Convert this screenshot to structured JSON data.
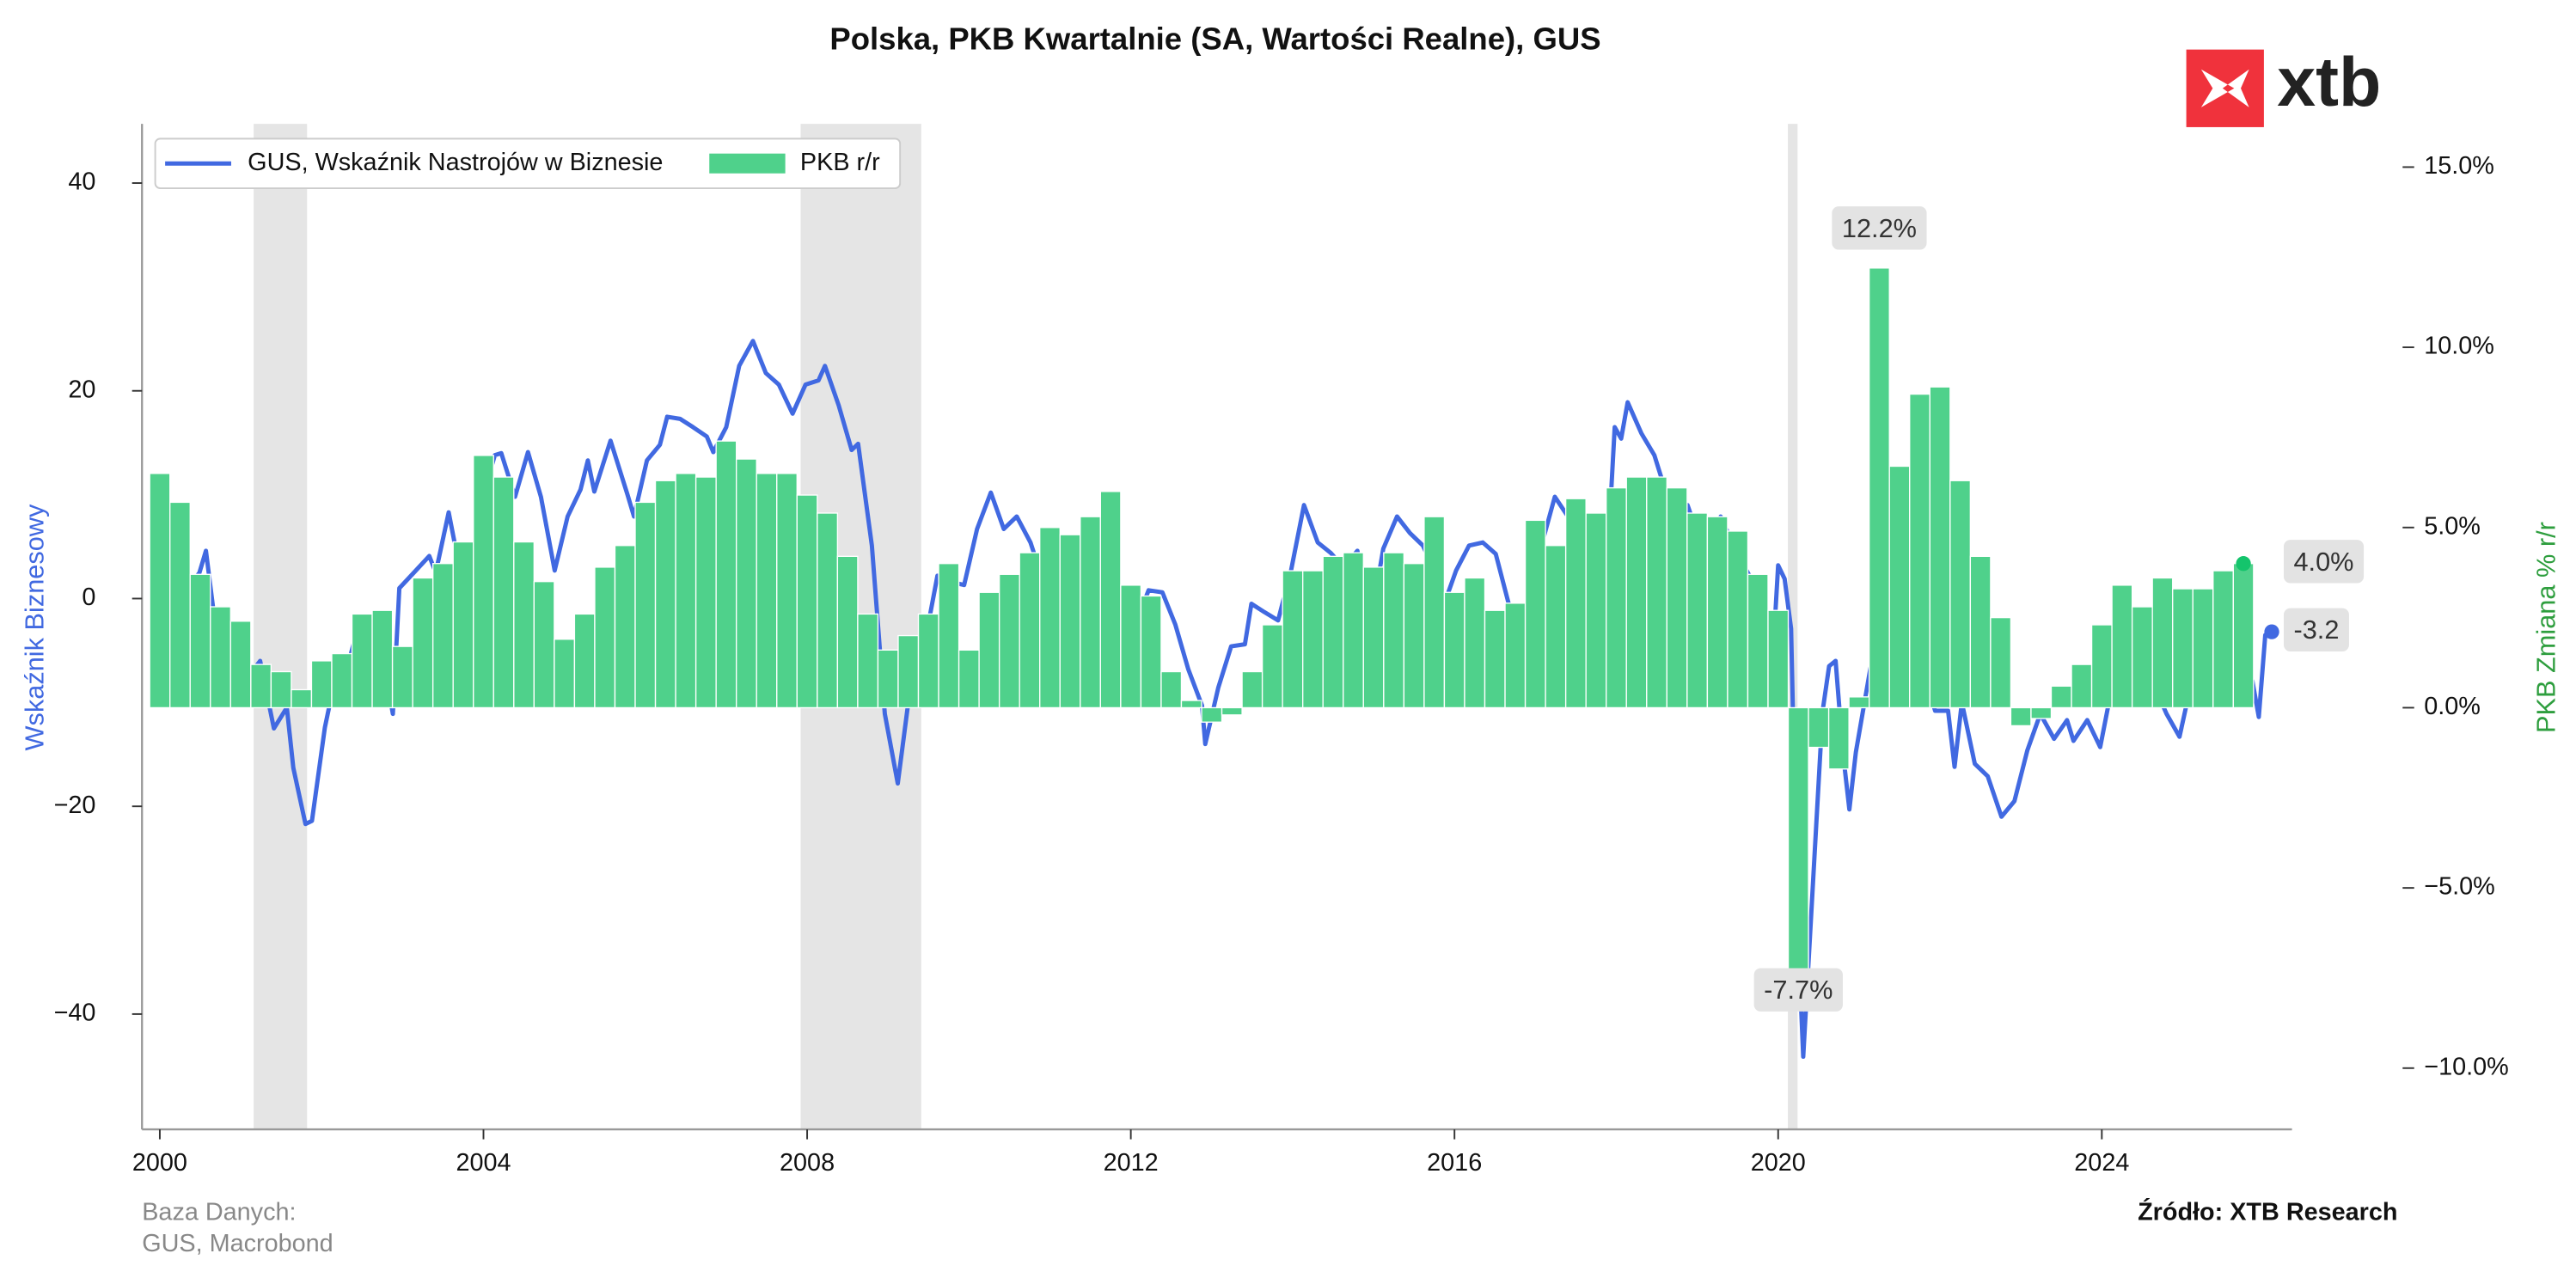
{
  "chart_data": {
    "type": "combo",
    "title": "Polska, PKB Kwartalnie (SA, Wartości Realne), GUS",
    "ylabel": "Wskaźnik Biznesowy",
    "y2label": "PKB Zmiana % r/r",
    "xlim": [
      1999.78,
      2026.35
    ],
    "xticks": [
      2000,
      2004,
      2008,
      2012,
      2016,
      2020,
      2024
    ],
    "ylim": [
      -51.1,
      45.7
    ],
    "yticks": [
      {
        "value": -40,
        "label": "−40"
      },
      {
        "value": -20,
        "label": "−20"
      },
      0,
      20,
      40
    ],
    "y2lim": [
      -11.7,
      16.2
    ],
    "y2ticks": [
      {
        "value": -10,
        "label": "−10.0%"
      },
      {
        "value": -5,
        "label": "−5.0%"
      },
      {
        "value": 0,
        "label": "0.0%"
      },
      {
        "value": 5,
        "label": "5.0%"
      },
      {
        "value": 10,
        "label": "10.0%"
      },
      {
        "value": 15,
        "label": "15.0%"
      }
    ],
    "legend_loc": "upper left",
    "grid": false,
    "shaded_periods": [
      [
        2001.16,
        2001.82
      ],
      [
        2007.92,
        2009.41
      ],
      [
        2020.12,
        2020.24
      ]
    ],
    "series": [
      {
        "name": "GUS, Wskaźnik Nastrojów w Biznesie",
        "type": "line",
        "color": "#4169e1",
        "x": [
          2000.0,
          2000.16,
          2000.33,
          2000.49,
          2000.57,
          2000.67,
          2000.82,
          2000.9,
          2001.0,
          2001.16,
          2001.24,
          2001.41,
          2001.57,
          2001.65,
          2001.8,
          2001.88,
          2002.04,
          2002.22,
          2002.31,
          2002.47,
          2002.63,
          2002.8,
          2002.88,
          2002.96,
          2003.14,
          2003.33,
          2003.41,
          2003.57,
          2003.73,
          2003.82,
          2003.98,
          2004.14,
          2004.22,
          2004.39,
          2004.55,
          2004.71,
          2004.88,
          2005.04,
          2005.2,
          2005.29,
          2005.37,
          2005.57,
          2005.78,
          2005.86,
          2006.02,
          2006.18,
          2006.27,
          2006.43,
          2006.59,
          2006.76,
          2006.84,
          2007.0,
          2007.16,
          2007.33,
          2007.49,
          2007.65,
          2007.82,
          2007.98,
          2008.14,
          2008.22,
          2008.39,
          2008.55,
          2008.63,
          2008.8,
          2008.96,
          2009.12,
          2009.29,
          2009.45,
          2009.61,
          2009.78,
          2009.94,
          2010.1,
          2010.27,
          2010.43,
          2010.59,
          2010.76,
          2010.92,
          2011.0,
          2011.16,
          2011.33,
          2011.49,
          2011.65,
          2011.82,
          2011.9,
          2012.06,
          2012.22,
          2012.39,
          2012.55,
          2012.71,
          2012.88,
          2012.92,
          2013.08,
          2013.24,
          2013.41,
          2013.49,
          2013.65,
          2013.82,
          2013.98,
          2014.14,
          2014.31,
          2014.47,
          2014.63,
          2014.8,
          2014.96,
          2015.12,
          2015.29,
          2015.45,
          2015.61,
          2015.78,
          2015.86,
          2016.02,
          2016.18,
          2016.35,
          2016.51,
          2016.67,
          2016.84,
          2017.0,
          2017.24,
          2017.41,
          2017.57,
          2017.73,
          2017.9,
          2017.98,
          2018.06,
          2018.14,
          2018.31,
          2018.47,
          2018.63,
          2018.8,
          2018.88,
          2019.04,
          2019.2,
          2019.29,
          2019.45,
          2019.61,
          2019.78,
          2019.94,
          2020.0,
          2020.08,
          2020.16,
          2020.24,
          2020.31,
          2020.39,
          2020.47,
          2020.55,
          2020.63,
          2020.71,
          2020.8,
          2020.88,
          2020.96,
          2021.12,
          2021.29,
          2021.45,
          2021.61,
          2021.78,
          2021.94,
          2022.1,
          2022.18,
          2022.27,
          2022.43,
          2022.59,
          2022.76,
          2022.92,
          2023.08,
          2023.24,
          2023.41,
          2023.57,
          2023.65,
          2023.82,
          2023.98,
          2024.14,
          2024.31,
          2024.47,
          2024.63,
          2024.8,
          2024.96,
          2025.12,
          2025.29,
          2025.45,
          2025.61,
          2025.78,
          2025.86,
          2025.94,
          2026.02,
          2026.1
        ],
        "values": [
          -1.6,
          3.0,
          0.8,
          2.5,
          4.6,
          -1.6,
          -7.9,
          -9.5,
          -5.6,
          -6.8,
          -6.0,
          -12.5,
          -10.5,
          -16.3,
          -21.7,
          -21.4,
          -12.4,
          -5.7,
          -6.8,
          -2.2,
          -2.4,
          -7.6,
          -11.1,
          1.0,
          2.5,
          4.1,
          2.5,
          8.3,
          1.9,
          1.0,
          9.5,
          13.8,
          14.0,
          9.8,
          14.1,
          9.8,
          2.7,
          7.9,
          10.5,
          13.3,
          10.3,
          15.2,
          10.0,
          7.9,
          13.3,
          14.8,
          17.5,
          17.3,
          16.5,
          15.6,
          14.1,
          16.5,
          22.4,
          24.8,
          21.7,
          20.6,
          17.8,
          20.6,
          21.0,
          22.4,
          18.6,
          14.3,
          14.9,
          5.1,
          -11.1,
          -17.8,
          -7.6,
          -4.4,
          2.2,
          1.6,
          1.3,
          6.7,
          10.2,
          6.7,
          7.9,
          5.4,
          1.6,
          -2.2,
          3.5,
          4.3,
          3.3,
          1.7,
          -5.4,
          -6.8,
          -2.4,
          0.8,
          0.6,
          -2.5,
          -6.8,
          -10.3,
          -14.0,
          -8.6,
          -4.6,
          -4.4,
          -0.5,
          -1.3,
          -2.1,
          2.7,
          9.0,
          5.4,
          4.4,
          3.0,
          4.6,
          -2.5,
          4.8,
          7.9,
          6.3,
          5.1,
          2.2,
          -0.8,
          2.7,
          5.1,
          5.4,
          4.3,
          -0.5,
          -2.5,
          3.0,
          9.8,
          7.8,
          7.5,
          6.3,
          5.1,
          16.5,
          15.4,
          18.9,
          15.9,
          13.8,
          9.8,
          7.0,
          9.0,
          5.4,
          5.4,
          7.9,
          5.1,
          2.7,
          0.3,
          -4.8,
          3.2,
          1.9,
          -2.9,
          -31.4,
          -44.1,
          -33.0,
          -21.9,
          -10.8,
          -6.5,
          -6.0,
          -14.8,
          -20.3,
          -14.8,
          -7.6,
          -0.3,
          -1.0,
          -1.0,
          -6.8,
          -10.8,
          -10.8,
          -16.2,
          -10.0,
          -15.9,
          -17.1,
          -21.0,
          -19.5,
          -14.6,
          -11.1,
          -13.5,
          -11.7,
          -13.7,
          -11.7,
          -14.3,
          -7.9,
          -6.8,
          -10.2,
          -8.1,
          -11.1,
          -13.3,
          -7.6,
          -6.3,
          -7.6,
          -5.7,
          -7.9,
          -7.9,
          -11.4,
          -3.5,
          -3.2
        ],
        "value_labels": [
          null,
          null,
          null,
          null,
          null,
          null,
          null,
          null,
          null,
          null,
          null,
          null,
          null,
          null,
          null,
          null,
          null,
          null,
          null,
          null,
          null,
          null,
          null,
          null,
          null,
          null,
          null,
          null,
          null,
          null,
          null,
          null,
          null,
          null,
          null,
          null,
          null,
          null,
          null,
          null,
          null,
          null,
          null,
          null,
          null,
          null,
          null,
          null,
          null,
          null,
          null,
          null,
          null,
          null,
          null,
          null,
          null,
          null,
          null,
          null,
          null,
          null,
          null,
          null,
          null,
          null,
          null,
          null,
          null,
          null,
          null,
          null,
          null,
          null,
          null,
          null,
          null,
          null,
          null,
          null,
          null,
          null,
          null,
          null,
          null,
          null,
          null,
          null,
          null,
          null,
          null,
          null,
          null,
          null,
          null,
          null,
          null,
          null,
          null,
          null,
          null,
          null,
          null,
          null,
          null,
          null,
          null,
          null,
          null,
          null,
          null,
          null,
          null,
          null,
          null,
          null,
          null,
          null,
          null,
          null,
          null,
          null,
          null,
          null,
          null,
          null,
          null,
          null,
          null,
          null,
          null,
          null,
          null,
          null,
          null,
          null,
          null,
          null,
          null,
          null,
          null,
          null,
          null,
          null,
          null,
          null,
          null,
          null,
          null,
          null,
          null,
          null,
          null,
          null,
          null,
          null,
          null,
          null,
          null,
          null,
          null,
          null,
          null,
          null,
          null,
          null,
          null,
          null,
          null,
          null,
          null,
          null,
          null,
          null,
          null,
          null,
          null,
          null,
          null,
          null,
          null,
          null,
          null,
          null,
          "-3.2"
        ]
      },
      {
        "name": "PKB r/r",
        "type": "bar",
        "axis": "y2",
        "color": "#4fd18b",
        "x": [
          2000,
          2000.25,
          2000.5,
          2000.75,
          2001,
          2001.25,
          2001.5,
          2001.75,
          2002,
          2002.25,
          2002.5,
          2002.75,
          2003,
          2003.25,
          2003.5,
          2003.75,
          2004,
          2004.25,
          2004.5,
          2004.75,
          2005,
          2005.25,
          2005.5,
          2005.75,
          2006,
          2006.25,
          2006.5,
          2006.75,
          2007,
          2007.25,
          2007.5,
          2007.75,
          2008,
          2008.25,
          2008.5,
          2008.75,
          2009,
          2009.25,
          2009.5,
          2009.75,
          2010,
          2010.25,
          2010.5,
          2010.75,
          2011,
          2011.25,
          2011.5,
          2011.75,
          2012,
          2012.25,
          2012.5,
          2012.75,
          2013,
          2013.25,
          2013.5,
          2013.75,
          2014,
          2014.25,
          2014.5,
          2014.75,
          2015,
          2015.25,
          2015.5,
          2015.75,
          2016,
          2016.25,
          2016.5,
          2016.75,
          2017,
          2017.25,
          2017.5,
          2017.75,
          2018,
          2018.25,
          2018.5,
          2018.75,
          2019,
          2019.25,
          2019.5,
          2019.75,
          2020,
          2020.25,
          2020.5,
          2020.75,
          2021,
          2021.25,
          2021.5,
          2021.75,
          2022,
          2022.25,
          2022.5,
          2022.75,
          2023,
          2023.25,
          2023.5,
          2023.75,
          2024,
          2024.25,
          2024.5,
          2024.75,
          2025,
          2025.25,
          2025.5,
          2025.75
        ],
        "values": [
          6.5,
          5.7,
          3.7,
          2.8,
          2.4,
          1.2,
          1.0,
          0.5,
          1.3,
          1.5,
          2.6,
          2.7,
          1.7,
          3.6,
          4.0,
          4.6,
          7.0,
          6.4,
          4.6,
          3.5,
          1.9,
          2.6,
          3.9,
          4.5,
          5.7,
          6.3,
          6.5,
          6.4,
          7.4,
          6.9,
          6.5,
          6.5,
          5.9,
          5.4,
          4.2,
          2.6,
          1.6,
          2.0,
          2.6,
          4.0,
          1.6,
          3.2,
          3.7,
          4.3,
          5.0,
          4.8,
          5.3,
          6.0,
          3.4,
          3.1,
          1.0,
          0.2,
          -0.4,
          -0.2,
          1.0,
          2.3,
          3.8,
          3.8,
          4.2,
          4.3,
          3.9,
          4.3,
          4.0,
          5.3,
          3.2,
          3.6,
          2.7,
          2.9,
          5.2,
          4.5,
          5.8,
          5.4,
          6.1,
          6.4,
          6.4,
          6.1,
          5.4,
          5.3,
          4.9,
          3.7,
          2.7,
          -7.7,
          -1.1,
          -1.7,
          0.3,
          12.2,
          6.7,
          8.7,
          8.9,
          6.3,
          4.2,
          2.5,
          -0.5,
          -0.3,
          0.6,
          1.2,
          2.3,
          3.4,
          2.8,
          3.6,
          3.3,
          3.3,
          3.8,
          4.0
        ],
        "value_labels": [
          null,
          null,
          null,
          null,
          null,
          null,
          null,
          null,
          null,
          null,
          null,
          null,
          null,
          null,
          null,
          null,
          null,
          null,
          null,
          null,
          null,
          null,
          null,
          null,
          null,
          null,
          null,
          null,
          null,
          null,
          null,
          null,
          null,
          null,
          null,
          null,
          null,
          null,
          null,
          null,
          null,
          null,
          null,
          null,
          null,
          null,
          null,
          null,
          null,
          null,
          null,
          null,
          null,
          null,
          null,
          null,
          null,
          null,
          null,
          null,
          null,
          null,
          null,
          null,
          null,
          null,
          null,
          null,
          null,
          null,
          null,
          null,
          null,
          null,
          null,
          null,
          null,
          null,
          null,
          null,
          null,
          "-7.7%",
          null,
          null,
          null,
          "12.2%",
          null,
          null,
          null,
          null,
          null,
          null,
          null,
          null,
          null,
          null,
          null,
          null,
          null,
          null,
          null,
          null,
          null,
          "4.0%"
        ]
      }
    ]
  },
  "logo": {
    "text": "xtb"
  },
  "source": {
    "database": [
      "Baza Danych:",
      "GUS, Macrobond"
    ],
    "attribution": "Źródło: XTB Research"
  }
}
